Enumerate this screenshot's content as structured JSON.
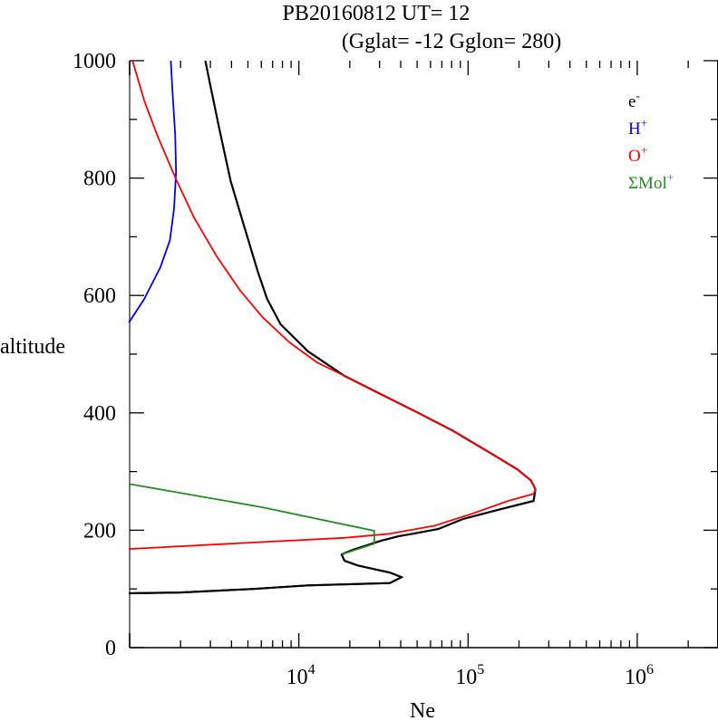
{
  "chart_data": {
    "type": "line",
    "title_line1": "PB20160812   UT=  12",
    "title_line2": "(Gglat= -12   Gglon=  280)",
    "xlabel": "Ne",
    "ylabel": "altitude",
    "xscale": "log",
    "xlim": [
      1000,
      3000000
    ],
    "ylim": [
      0,
      1000
    ],
    "yticks": [
      "0",
      "200",
      "400",
      "600",
      "800",
      "1000"
    ],
    "ytick_values": [
      0,
      200,
      400,
      600,
      800,
      1000
    ],
    "xticks": [
      {
        "base": "10",
        "exp": "4",
        "value": 10000
      },
      {
        "base": "10",
        "exp": "5",
        "value": 100000
      },
      {
        "base": "10",
        "exp": "6",
        "value": 1000000
      }
    ],
    "legend_position": "top-right",
    "series": [
      {
        "name": "e",
        "sup": "-",
        "color": "#000000",
        "points": [
          [
            990,
            92.6
          ],
          [
            2000,
            94
          ],
          [
            5380,
            100
          ],
          [
            11300,
            106
          ],
          [
            34500,
            110
          ],
          [
            40500,
            120
          ],
          [
            34500,
            128
          ],
          [
            28600,
            133
          ],
          [
            22300,
            140
          ],
          [
            18600,
            148
          ],
          [
            17900,
            159
          ],
          [
            21000,
            167
          ],
          [
            26900,
            177
          ],
          [
            30500,
            182
          ],
          [
            39000,
            190
          ],
          [
            47000,
            194
          ],
          [
            66500,
            202
          ],
          [
            93000,
            219
          ],
          [
            152000,
            235
          ],
          [
            244000,
            250
          ],
          [
            250000,
            270
          ],
          [
            235000,
            285
          ],
          [
            195000,
            304
          ],
          [
            135000,
            332
          ],
          [
            82000,
            369
          ],
          [
            50000,
            401
          ],
          [
            30500,
            432
          ],
          [
            18600,
            463
          ],
          [
            11300,
            505
          ],
          [
            7800,
            551
          ],
          [
            6500,
            594
          ],
          [
            5730,
            640
          ],
          [
            4760,
            717
          ],
          [
            3950,
            795
          ],
          [
            3370,
            887
          ],
          [
            2970,
            964
          ],
          [
            2800,
            1000
          ]
        ]
      },
      {
        "name": "H",
        "sup": "+",
        "color": "#0000ff",
        "points": [
          [
            990,
            554
          ],
          [
            1220,
            594
          ],
          [
            1520,
            648
          ],
          [
            1730,
            694
          ],
          [
            1830,
            748
          ],
          [
            1880,
            810
          ],
          [
            1860,
            872
          ],
          [
            1790,
            949
          ],
          [
            1750,
            1000
          ]
        ]
      },
      {
        "name": "O",
        "sup": "+",
        "color": "#ff0000",
        "points": [
          [
            990,
            168
          ],
          [
            6100,
            180
          ],
          [
            18600,
            187
          ],
          [
            34500,
            194
          ],
          [
            64000,
            208
          ],
          [
            105000,
            228
          ],
          [
            173000,
            250
          ],
          [
            244000,
            262
          ],
          [
            250000,
            270
          ],
          [
            235000,
            285
          ],
          [
            195000,
            304
          ],
          [
            135000,
            332
          ],
          [
            82000,
            369
          ],
          [
            50000,
            401
          ],
          [
            30500,
            432
          ],
          [
            18600,
            463
          ],
          [
            12800,
            486
          ],
          [
            8800,
            520
          ],
          [
            6100,
            563
          ],
          [
            4480,
            609
          ],
          [
            3280,
            666
          ],
          [
            2410,
            732
          ],
          [
            1880,
            798
          ],
          [
            1470,
            870
          ],
          [
            1220,
            932
          ],
          [
            1040,
            1000
          ]
        ]
      },
      {
        "name": "ΣMol",
        "sup": "+",
        "color": "#228b22",
        "points": [
          [
            990,
            92.6
          ],
          [
            2000,
            94
          ],
          [
            5380,
            100
          ],
          [
            11300,
            106
          ],
          [
            34500,
            110
          ],
          [
            40500,
            120
          ],
          [
            34500,
            128
          ],
          [
            28600,
            133
          ],
          [
            22300,
            140
          ],
          [
            18600,
            148
          ],
          [
            17900,
            159
          ],
          [
            27900,
            177
          ],
          [
            27900,
            199
          ],
          [
            6100,
            239
          ],
          [
            990,
            279
          ]
        ]
      }
    ]
  }
}
